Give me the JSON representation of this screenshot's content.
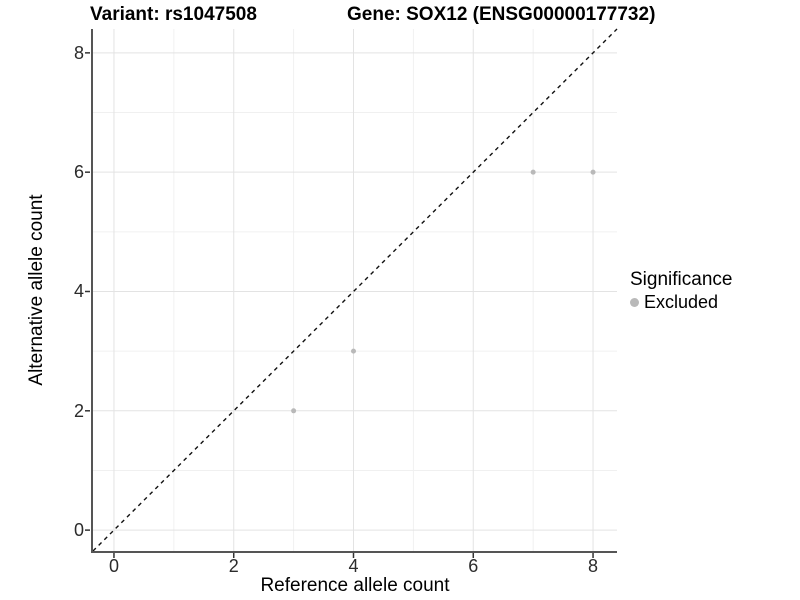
{
  "header": {
    "title_left": "Variant: rs1047508",
    "title_right": "Gene: SOX12 (ENSG00000177732)"
  },
  "chart_data": {
    "type": "scatter",
    "title_left": "Variant: rs1047508",
    "title_right": "Gene: SOX12 (ENSG00000177732)",
    "xlabel": "Reference allele count",
    "ylabel": "Alternative allele count",
    "xlim": [
      -0.35,
      8.4
    ],
    "ylim": [
      -0.35,
      8.4
    ],
    "x_ticks": [
      0,
      2,
      4,
      6,
      8
    ],
    "y_ticks": [
      0,
      2,
      4,
      6,
      8
    ],
    "minor_ticks": [
      1,
      3,
      5,
      7
    ],
    "grid": "on",
    "identity_line": {
      "slope": 1,
      "intercept": 0,
      "style": "dashed",
      "color": "#111111"
    },
    "series": [
      {
        "name": "Excluded",
        "color": "#b9b9b9",
        "points": [
          [
            3,
            2
          ],
          [
            4,
            3
          ],
          [
            7,
            6
          ],
          [
            8,
            6
          ]
        ],
        "point_radius": 2.5
      }
    ],
    "legend": {
      "position": "right",
      "title": "Significance",
      "items": [
        {
          "label": "Excluded",
          "color": "#b9b9b9"
        }
      ]
    },
    "colors": {
      "grid_major": "#e3e3e3",
      "grid_minor": "#f0f0f0",
      "axis_line": "#555555",
      "tick_mark": "#333333",
      "text": "#000000"
    }
  }
}
